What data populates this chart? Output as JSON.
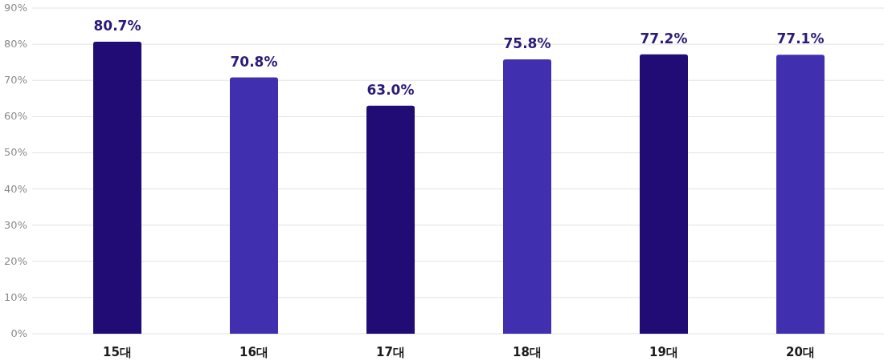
{
  "chart_data": {
    "type": "bar",
    "categories": [
      "15대",
      "16대",
      "17대",
      "18대",
      "19대",
      "20대"
    ],
    "values": [
      80.7,
      70.8,
      63.0,
      75.8,
      77.2,
      77.1
    ],
    "value_labels": [
      "80.7%",
      "70.8%",
      "63.0%",
      "75.8%",
      "77.2%",
      "77.1%"
    ],
    "colors": [
      "#200c74",
      "#4030b0",
      "#200c74",
      "#4030b0",
      "#200c74",
      "#4030b0"
    ],
    "ylim": [
      0,
      90
    ],
    "yticks": [
      {
        "value": 0,
        "label": "0%"
      },
      {
        "value": 10,
        "label": "10%"
      },
      {
        "value": 20,
        "label": "20%"
      },
      {
        "value": 30,
        "label": "30%"
      },
      {
        "value": 40,
        "label": "40%"
      },
      {
        "value": 50,
        "label": "50%"
      },
      {
        "value": 60,
        "label": "60%"
      },
      {
        "value": 70,
        "label": "70%"
      },
      {
        "value": 80,
        "label": "80%"
      },
      {
        "value": 90,
        "label": "90%"
      }
    ],
    "grid": "y"
  }
}
